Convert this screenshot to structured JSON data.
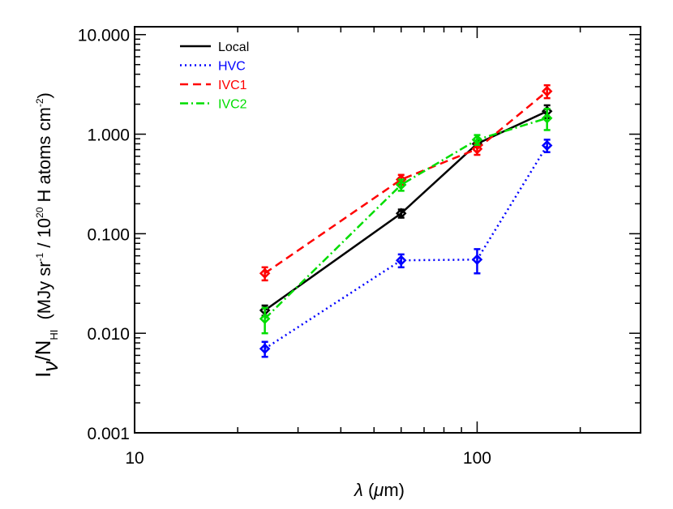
{
  "chart_data": {
    "type": "line",
    "xscale": "log",
    "yscale": "log",
    "xlim": [
      10,
      300
    ],
    "ylim": [
      0.001,
      12
    ],
    "xticks": [
      10,
      100
    ],
    "xtick_labels": [
      "10",
      "100"
    ],
    "yticks": [
      0.001,
      0.01,
      0.1,
      1,
      10
    ],
    "ytick_labels": [
      "0.001",
      "0.010",
      "0.100",
      "1.000",
      "10.000"
    ],
    "xlabel": "λ (μm)",
    "ylabel": "I_ν/N_HI (MJy sr^-1 / 10^20 H atoms cm^-2)",
    "legend_placement": "top-left",
    "grid": false,
    "x": [
      24,
      60,
      100,
      160
    ],
    "series": [
      {
        "name": "Local",
        "color": "#000000",
        "dash": "solid",
        "values": [
          0.017,
          0.16,
          0.8,
          1.7
        ],
        "err": [
          0.002,
          0.015,
          0.06,
          0.25
        ]
      },
      {
        "name": "HVC",
        "color": "#0000ff",
        "dash": "dotted",
        "values": [
          0.007,
          0.054,
          0.055,
          0.77
        ],
        "err": [
          0.0012,
          0.008,
          0.015,
          0.11
        ]
      },
      {
        "name": "IVC1",
        "color": "#ff0000",
        "dash": "dashed",
        "values": [
          0.04,
          0.35,
          0.71,
          2.7
        ],
        "err": [
          0.006,
          0.04,
          0.09,
          0.4
        ]
      },
      {
        "name": "IVC2",
        "color": "#00dd00",
        "dash": "dashdot",
        "values": [
          0.014,
          0.31,
          0.88,
          1.45
        ],
        "err": [
          0.004,
          0.04,
          0.1,
          0.35
        ]
      }
    ]
  }
}
